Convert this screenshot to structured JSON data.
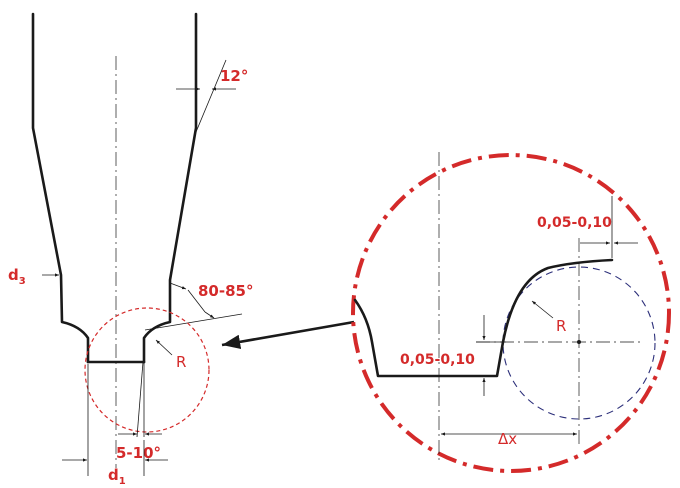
{
  "labels": {
    "angle_top": "12°",
    "angle_side": "80-85°",
    "angle_tip": "5-10°",
    "radius_left": "R",
    "radius_right": "R",
    "d3": "d",
    "d3_sub": "3",
    "d1": "d",
    "d1_sub": "1",
    "tol_bottom": "0,05-0,10",
    "tol_top": "0,05-0,10",
    "delta_x": "Δx"
  },
  "colors": {
    "annotation": "#d42a2a",
    "outline": "#1a1a1a",
    "construction": "#2c2f7a"
  }
}
